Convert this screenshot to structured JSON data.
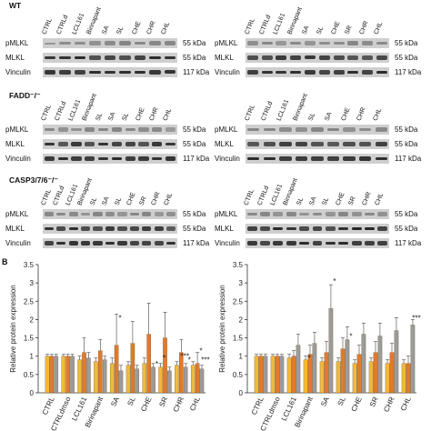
{
  "groups": [
    "WT",
    "FADD⁻/⁻",
    "CASP3/7/6⁻/⁻"
  ],
  "rows": [
    "pMLKL",
    "MLKL",
    "Vinculin"
  ],
  "kda": [
    "55 kDa",
    "55 kDa",
    "117 kDa"
  ],
  "panels": [
    {
      "lanes": [
        "CTRL",
        "CTRLd",
        "LCL161",
        "Birinapant",
        "SA",
        "SL",
        "CHE",
        "CHR",
        "CHL"
      ]
    },
    {
      "lanes": [
        "CTRL",
        "CTRLd",
        "LCL161",
        "Birinapant",
        "SA",
        "SL",
        "CHE",
        "SR",
        "CHR",
        "CHL"
      ]
    },
    {
      "lanes": [
        "CTRL",
        "CTRLd",
        "LCL161",
        "Birinapant",
        "SL",
        "SA",
        "SL",
        "CHE",
        "CHR",
        "CHL"
      ]
    },
    {
      "lanes": [
        "CTRL",
        "CTRLd",
        "LCL161",
        "Birinapant",
        "SL",
        "SA",
        "CHE",
        "CHR",
        "CHL"
      ]
    },
    {
      "lanes": [
        "CTRL",
        "CTRLd",
        "LCL161",
        "Birinapant",
        "SL",
        "SA",
        "SL",
        "CHE",
        "SR",
        "CHR",
        "CHL"
      ]
    },
    {
      "lanes": [
        "CTRL",
        "CTRLd",
        "LCL161",
        "Birinapant",
        "SL",
        "SA",
        "SL",
        "CHE",
        "SR",
        "CHR",
        "CHL"
      ]
    }
  ],
  "panel_label": "B",
  "chart_data": [
    {
      "type": "bar",
      "ylabel": "Relative protein expression",
      "ylim": [
        0,
        3.5
      ],
      "yticks": [
        "0",
        "0.5",
        "1",
        "1.5",
        "2",
        "2.5",
        "3",
        "3.5"
      ],
      "categories": [
        "CTRL",
        "CTRLdmso",
        "LCL161",
        "Birinapant",
        "SA",
        "SL",
        "CHE",
        "SR",
        "CHR",
        "CHL"
      ],
      "colors": [
        "#f2b83a",
        "#e07a2e",
        "#9b9b9b"
      ],
      "series": [
        {
          "values": [
            1.0,
            1.0,
            0.9,
            0.85,
            0.8,
            0.75,
            0.8,
            0.7,
            0.75,
            0.75
          ],
          "errors": [
            0.05,
            0.05,
            0.1,
            0.1,
            0.15,
            0.1,
            0.15,
            0.1,
            0.1,
            0.1
          ]
        },
        {
          "values": [
            1.0,
            1.0,
            1.1,
            1.15,
            1.3,
            1.35,
            1.6,
            1.5,
            1.1,
            0.8
          ],
          "errors": [
            0.05,
            0.05,
            0.4,
            0.3,
            0.85,
            0.6,
            0.85,
            0.7,
            0.35,
            0.3
          ]
        },
        {
          "values": [
            1.0,
            1.0,
            0.95,
            0.9,
            0.6,
            0.65,
            0.7,
            0.6,
            0.7,
            0.65
          ],
          "errors": [
            0.05,
            0.05,
            0.15,
            0.1,
            0.15,
            0.1,
            0.1,
            0.1,
            0.1,
            0.1
          ]
        }
      ],
      "annotations": [
        "*",
        "*",
        "*",
        "*",
        "***",
        "*",
        "***"
      ]
    },
    {
      "type": "bar",
      "ylabel": "Relative protein expression",
      "ylim": [
        0,
        3.5
      ],
      "yticks": [
        "0",
        "0.5",
        "1",
        "1.5",
        "2",
        "2.5",
        "3",
        "3.5"
      ],
      "categories": [
        "CTRL",
        "CTRLdmso",
        "LCL161",
        "Birinapant",
        "SA",
        "SL",
        "CHE",
        "SR",
        "CHR",
        "CHL"
      ],
      "colors": [
        "#f2b83a",
        "#e07a2e",
        "#9b9b9b"
      ],
      "series": [
        {
          "values": [
            1.0,
            1.0,
            0.95,
            0.9,
            0.85,
            0.85,
            0.8,
            0.85,
            0.8,
            0.8
          ],
          "errors": [
            0.05,
            0.05,
            0.1,
            0.1,
            0.1,
            0.1,
            0.1,
            0.1,
            0.1,
            0.1
          ]
        },
        {
          "values": [
            1.0,
            1.0,
            1.0,
            1.05,
            1.1,
            1.2,
            1.05,
            1.1,
            1.1,
            0.8
          ],
          "errors": [
            0.05,
            0.05,
            0.15,
            0.25,
            0.3,
            0.3,
            0.25,
            0.3,
            0.25,
            0.2
          ]
        },
        {
          "values": [
            1.0,
            1.0,
            1.3,
            1.35,
            2.3,
            1.45,
            1.6,
            1.55,
            1.7,
            1.85
          ],
          "errors": [
            0.05,
            0.05,
            0.3,
            0.3,
            0.65,
            0.35,
            0.3,
            0.35,
            0.35,
            0.15
          ]
        }
      ],
      "annotations": [
        "*",
        "*",
        "*",
        "***"
      ]
    }
  ]
}
